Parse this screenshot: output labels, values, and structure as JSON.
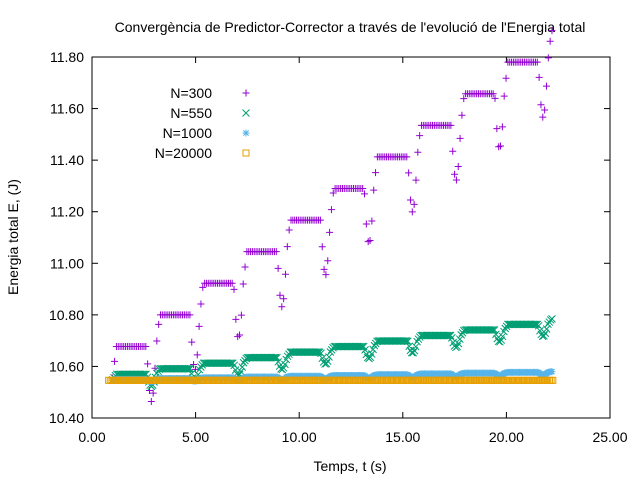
{
  "chart_data": {
    "type": "scatter",
    "title": "Convergència de Predictor-Corrector a través de l'evolució de l'Energia total",
    "xlabel": "Temps, t (s)",
    "ylabel": "Energia total E, (J)",
    "xlim": [
      0,
      25
    ],
    "ylim": [
      10.4,
      11.8
    ],
    "xticks": [
      "0.00",
      "5.00",
      "10.00",
      "15.00",
      "20.00",
      "25.00"
    ],
    "yticks": [
      "10.40",
      "10.60",
      "10.80",
      "11.00",
      "11.20",
      "11.40",
      "11.60",
      "11.80"
    ],
    "grid": false,
    "legend_position": "top-left",
    "series": [
      {
        "name": "N=300",
        "marker": "plus",
        "color": "#9400d3",
        "base": 10.555,
        "step": 0.1225,
        "min_drop": 0.115,
        "points": 300
      },
      {
        "name": "N=550",
        "marker": "cross",
        "color": "#009e73",
        "base": 10.548,
        "step": 0.0215,
        "min_drop": 0.03,
        "points": 550
      },
      {
        "name": "N=1000",
        "marker": "star",
        "color": "#56b4e9",
        "base": 10.547,
        "step": 0.003,
        "min_drop": 0.008,
        "points": 1000
      },
      {
        "name": "N=20000",
        "marker": "square",
        "color": "#e69f00",
        "base": 10.546,
        "step": 0.0,
        "min_drop": 0.0,
        "points": 20000
      }
    ],
    "x_range": [
      1.0,
      22.2
    ],
    "period": 2.1
  }
}
